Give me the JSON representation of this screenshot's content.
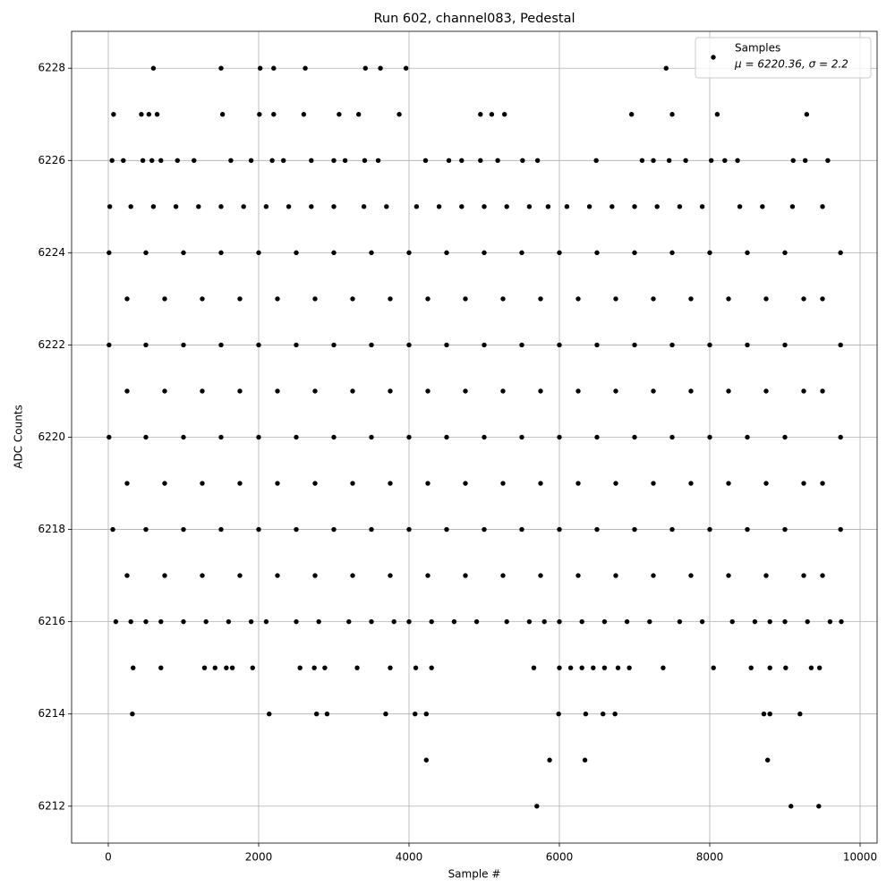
{
  "chart_data": {
    "type": "scatter",
    "title": "Run 602, channel083, Pedestal",
    "xlabel": "Sample #",
    "ylabel": "ADC Counts",
    "xlim": [
      -488,
      10226
    ],
    "ylim": [
      6211.2,
      6228.8
    ],
    "xticks": [
      0,
      2000,
      4000,
      6000,
      8000,
      10000
    ],
    "yticks": [
      6212,
      6214,
      6216,
      6218,
      6220,
      6222,
      6224,
      6226,
      6228
    ],
    "grid": true,
    "legend": "upper right",
    "legend_stats": "μ = 6220.36, σ = 2.2",
    "series": [
      {
        "name": "Samples",
        "color": "#000000",
        "x": [
          600,
          1500,
          2020,
          2200,
          2620,
          3420,
          3620,
          3960,
          7420,
          70,
          440,
          540,
          650,
          1520,
          2010,
          2200,
          2600,
          3070,
          3330,
          3870,
          4950,
          5100,
          5270,
          6960,
          7500,
          8100,
          9290,
          50,
          200,
          460,
          580,
          700,
          920,
          1140,
          1630,
          1900,
          2180,
          2330,
          2700,
          3000,
          3150,
          3410,
          3590,
          4220,
          4530,
          4700,
          4950,
          5180,
          5510,
          5710,
          6490,
          7100,
          7250,
          7460,
          7680,
          8020,
          8200,
          8370,
          9110,
          9270,
          9570,
          20,
          300,
          600,
          900,
          1200,
          1500,
          1800,
          2100,
          2400,
          2700,
          3000,
          3400,
          3700,
          4100,
          4400,
          4700,
          5000,
          5300,
          5600,
          5850,
          6100,
          6400,
          6700,
          7000,
          7300,
          7600,
          7900,
          8400,
          8700,
          9100,
          9500,
          10,
          500,
          1000,
          1500,
          2000,
          2500,
          3000,
          3500,
          4000,
          4500,
          5000,
          5500,
          6000,
          6500,
          7000,
          7500,
          8000,
          8500,
          9000,
          9740,
          250,
          750,
          1250,
          1750,
          2250,
          2750,
          3250,
          3750,
          4250,
          4750,
          5250,
          5750,
          6250,
          6750,
          7250,
          7750,
          8250,
          8750,
          9250,
          9500,
          10,
          500,
          1000,
          1500,
          2000,
          2500,
          3000,
          3500,
          4000,
          4500,
          5000,
          5500,
          6000,
          6500,
          7000,
          7500,
          8000,
          8500,
          9000,
          9740,
          250,
          750,
          1250,
          1750,
          2250,
          2750,
          3250,
          3750,
          4250,
          4750,
          5250,
          5750,
          6250,
          6750,
          7250,
          7750,
          8250,
          8750,
          9250,
          9500,
          10,
          500,
          1000,
          1500,
          2000,
          2500,
          3000,
          3500,
          4000,
          4500,
          5000,
          5500,
          6000,
          6500,
          7000,
          7500,
          8000,
          8500,
          9000,
          9740,
          250,
          750,
          1250,
          1750,
          2250,
          2750,
          3250,
          3750,
          4250,
          4750,
          5250,
          5750,
          6250,
          6750,
          7250,
          7750,
          8250,
          8750,
          9250,
          9500,
          60,
          500,
          1000,
          1500,
          2000,
          2500,
          3000,
          3500,
          4000,
          4500,
          5000,
          5500,
          6000,
          6500,
          7000,
          7500,
          8000,
          8500,
          9000,
          9740,
          250,
          750,
          1250,
          1750,
          2250,
          2750,
          3250,
          3750,
          4250,
          4750,
          5250,
          5750,
          6250,
          6750,
          7250,
          7750,
          8250,
          8750,
          9250,
          9500,
          100,
          300,
          500,
          700,
          1000,
          1300,
          1600,
          1900,
          2100,
          2500,
          2800,
          3200,
          3500,
          3800,
          4000,
          4300,
          4600,
          4900,
          5300,
          5600,
          5800,
          6000,
          6300,
          6600,
          6900,
          7200,
          7600,
          7900,
          8300,
          8600,
          8800,
          9000,
          9300,
          9600,
          9750,
          330,
          700,
          1280,
          1420,
          1570,
          1650,
          1920,
          2550,
          2740,
          2880,
          3310,
          3750,
          4090,
          4300,
          5660,
          6000,
          6150,
          6300,
          6450,
          6600,
          6780,
          6930,
          7380,
          8050,
          8550,
          8800,
          9010,
          9350,
          9460,
          320,
          2140,
          2770,
          2910,
          3690,
          4080,
          4230,
          5990,
          6350,
          6580,
          6740,
          8720,
          8800,
          9200,
          4230,
          5870,
          6340,
          8770,
          5700,
          9080,
          9450
        ],
        "values": [
          6228,
          6228,
          6228,
          6228,
          6228,
          6228,
          6228,
          6228,
          6228,
          6227,
          6227,
          6227,
          6227,
          6227,
          6227,
          6227,
          6227,
          6227,
          6227,
          6227,
          6227,
          6227,
          6227,
          6227,
          6227,
          6227,
          6227,
          6226,
          6226,
          6226,
          6226,
          6226,
          6226,
          6226,
          6226,
          6226,
          6226,
          6226,
          6226,
          6226,
          6226,
          6226,
          6226,
          6226,
          6226,
          6226,
          6226,
          6226,
          6226,
          6226,
          6226,
          6226,
          6226,
          6226,
          6226,
          6226,
          6226,
          6226,
          6226,
          6226,
          6226,
          6225,
          6225,
          6225,
          6225,
          6225,
          6225,
          6225,
          6225,
          6225,
          6225,
          6225,
          6225,
          6225,
          6225,
          6225,
          6225,
          6225,
          6225,
          6225,
          6225,
          6225,
          6225,
          6225,
          6225,
          6225,
          6225,
          6225,
          6225,
          6225,
          6225,
          6225,
          6224,
          6224,
          6224,
          6224,
          6224,
          6224,
          6224,
          6224,
          6224,
          6224,
          6224,
          6224,
          6224,
          6224,
          6224,
          6224,
          6224,
          6224,
          6224,
          6224,
          6223,
          6223,
          6223,
          6223,
          6223,
          6223,
          6223,
          6223,
          6223,
          6223,
          6223,
          6223,
          6223,
          6223,
          6223,
          6223,
          6223,
          6223,
          6223,
          6223,
          6222,
          6222,
          6222,
          6222,
          6222,
          6222,
          6222,
          6222,
          6222,
          6222,
          6222,
          6222,
          6222,
          6222,
          6222,
          6222,
          6222,
          6222,
          6222,
          6222,
          6221,
          6221,
          6221,
          6221,
          6221,
          6221,
          6221,
          6221,
          6221,
          6221,
          6221,
          6221,
          6221,
          6221,
          6221,
          6221,
          6221,
          6221,
          6221,
          6221,
          6220,
          6220,
          6220,
          6220,
          6220,
          6220,
          6220,
          6220,
          6220,
          6220,
          6220,
          6220,
          6220,
          6220,
          6220,
          6220,
          6220,
          6220,
          6220,
          6220,
          6219,
          6219,
          6219,
          6219,
          6219,
          6219,
          6219,
          6219,
          6219,
          6219,
          6219,
          6219,
          6219,
          6219,
          6219,
          6219,
          6219,
          6219,
          6219,
          6219,
          6218,
          6218,
          6218,
          6218,
          6218,
          6218,
          6218,
          6218,
          6218,
          6218,
          6218,
          6218,
          6218,
          6218,
          6218,
          6218,
          6218,
          6218,
          6218,
          6218,
          6217,
          6217,
          6217,
          6217,
          6217,
          6217,
          6217,
          6217,
          6217,
          6217,
          6217,
          6217,
          6217,
          6217,
          6217,
          6217,
          6217,
          6217,
          6217,
          6217,
          6216,
          6216,
          6216,
          6216,
          6216,
          6216,
          6216,
          6216,
          6216,
          6216,
          6216,
          6216,
          6216,
          6216,
          6216,
          6216,
          6216,
          6216,
          6216,
          6216,
          6216,
          6216,
          6216,
          6216,
          6216,
          6216,
          6216,
          6216,
          6216,
          6216,
          6216,
          6216,
          6216,
          6216,
          6216,
          6215,
          6215,
          6215,
          6215,
          6215,
          6215,
          6215,
          6215,
          6215,
          6215,
          6215,
          6215,
          6215,
          6215,
          6215,
          6215,
          6215,
          6215,
          6215,
          6215,
          6215,
          6215,
          6215,
          6215,
          6215,
          6215,
          6215,
          6215,
          6215,
          6214,
          6214,
          6214,
          6214,
          6214,
          6214,
          6214,
          6214,
          6214,
          6214,
          6214,
          6214,
          6214,
          6214,
          6213,
          6213,
          6213,
          6213,
          6212,
          6212,
          6212
        ]
      }
    ]
  }
}
